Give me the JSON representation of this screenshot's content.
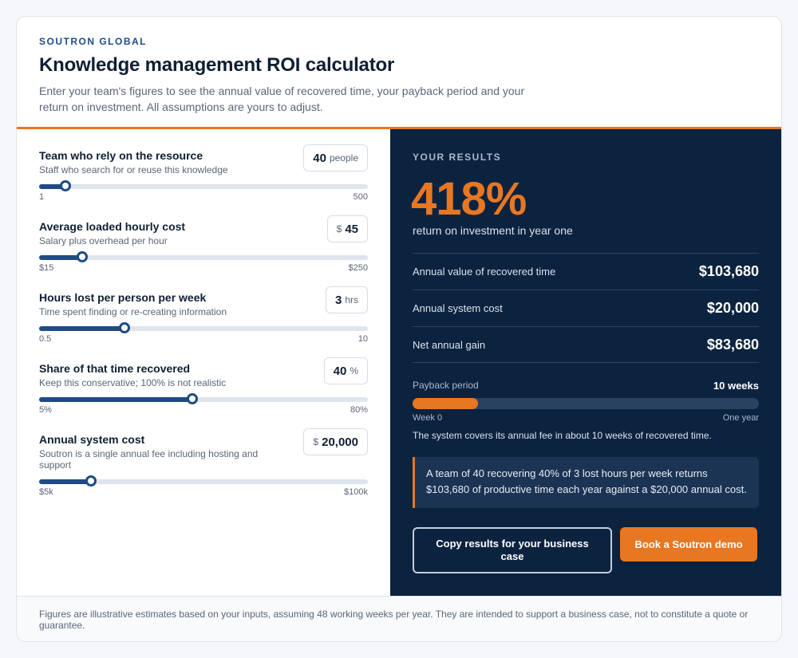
{
  "header": {
    "brand": "SOUTRON GLOBAL",
    "title": "Knowledge management ROI calculator",
    "intro": "Enter your team's figures to see the annual value of recovered time, your payback period and your return on investment. All assumptions are yours to adjust."
  },
  "inputs": [
    {
      "label": "Team who rely on the resource",
      "help": "Staff who search for or reuse this knowledge",
      "prefix": "",
      "value": "40",
      "unit": "people",
      "min": "1",
      "max": "500",
      "fraction": 0.08
    },
    {
      "label": "Average loaded hourly cost",
      "help": "Salary plus overhead per hour",
      "prefix": "$",
      "value": "45",
      "unit": "",
      "min": "$15",
      "max": "$250",
      "fraction": 0.13
    },
    {
      "label": "Hours lost per person per week",
      "help": "Time spent finding or re-creating information",
      "prefix": "",
      "value": "3",
      "unit": "hrs",
      "min": "0.5",
      "max": "10",
      "fraction": 0.26
    },
    {
      "label": "Share of that time recovered",
      "help": "Keep this conservative; 100% is not realistic",
      "prefix": "",
      "value": "40",
      "unit": "%",
      "min": "5%",
      "max": "80%",
      "fraction": 0.467
    },
    {
      "label": "Annual system cost",
      "help": "Soutron is a single annual fee including hosting and support",
      "prefix": "$",
      "value": "20,000",
      "unit": "",
      "min": "$5k",
      "max": "$100k",
      "fraction": 0.158
    }
  ],
  "results": {
    "heading": "YOUR RESULTS",
    "roi": "418%",
    "roi_caption": "return on investment in year one",
    "metrics": [
      {
        "label": "Annual value of recovered time",
        "value": "$103,680"
      },
      {
        "label": "Annual system cost",
        "value": "$20,000"
      },
      {
        "label": "Net annual gain",
        "value": "$83,680"
      }
    ],
    "payback": {
      "label": "Payback period",
      "value": "10 weeks",
      "fraction": 0.19,
      "min_label": "Week 0",
      "max_label": "One year",
      "note": "The system covers its annual fee in about 10 weeks of recovered time."
    },
    "summary": "A team of 40 recovering 40% of 3 lost hours per week returns $103,680 of productive time each year against a $20,000 annual cost.",
    "copy_button": "Copy results for your business case",
    "demo_button": "Book a Soutron demo"
  },
  "footer": "Figures are illustrative estimates based on your inputs, assuming 48 working weeks per year. They are intended to support a business case, not to constitute a quote or guarantee.",
  "colors": {
    "navy": "#0c2340",
    "accent": "#e87722",
    "slider": "#1e4b85"
  }
}
